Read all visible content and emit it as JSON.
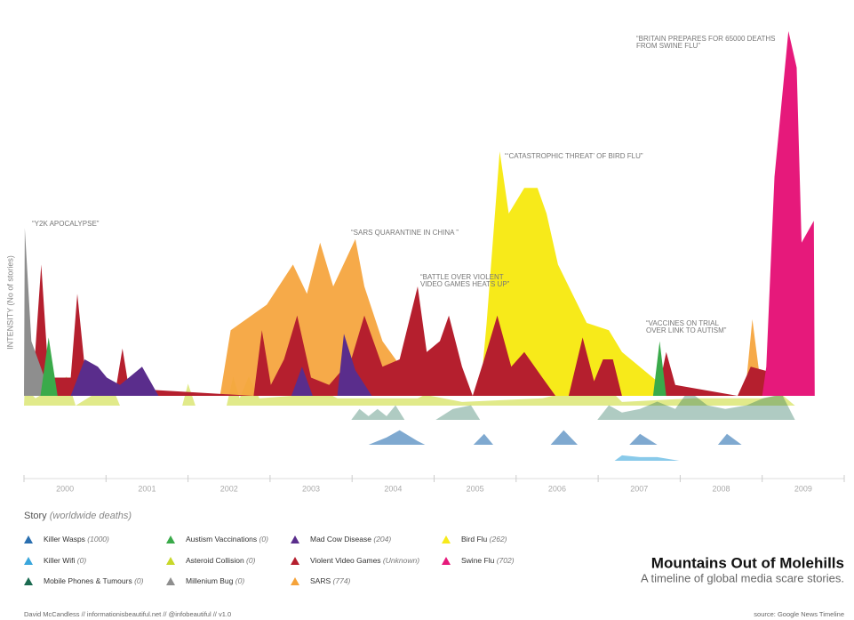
{
  "chart_data": {
    "type": "area",
    "title": "Mountains Out of Molehills",
    "subtitle": "A timeline of global media scare stories.",
    "y_label": "INTENSITY (No of stories)",
    "legend_title": "Story",
    "legend_note": "(worldwide deaths)",
    "credit": "David McCandless // informationisbeautiful.net // @infobeautiful // v1.0",
    "source": "source: Google News Timeline",
    "categories": [
      "2000",
      "2001",
      "2002",
      "2003",
      "2004",
      "2005",
      "2006",
      "2007",
      "2008",
      "2009"
    ],
    "xlim": [
      2000,
      2010
    ],
    "ylim": [
      0,
      100
    ],
    "annotations": [
      [
        "“Y2K APOCALYPSE”"
      ],
      [
        "“SARS QUARANTINE IN CHINA  ”"
      ],
      [
        "“BATTLE OVER VIOLENT",
        "VIDEO GAMES HEATS UP”"
      ],
      [
        "“‘CATASTROPHIC THREAT’ OF BIRD FLU”"
      ],
      [
        "“VACCINES ON TRIAL",
        "OVER LINK TO AUTISM”"
      ],
      [
        "“BRITAIN PREPARES FOR 65000 DEATHS",
        "FROM SWINE FLU”"
      ]
    ],
    "series": [
      {
        "name": "Killer Wasps",
        "deaths": "(1000)",
        "color": "#2a6fb0",
        "x": [
          2004.2,
          2004.42,
          2004.58,
          2004.8,
          2004.89,
          2005.48,
          2005.61,
          2005.72,
          2006.42,
          2006.58,
          2006.75,
          2007.38,
          2007.51,
          2007.72,
          2008.46,
          2008.57,
          2008.75
        ],
        "values": [
          0,
          2,
          4,
          1,
          0,
          0,
          3,
          0,
          0,
          4,
          0,
          0,
          3,
          0,
          0,
          3,
          0
        ]
      },
      {
        "name": "Killer Wifi",
        "deaths": "(0)",
        "color": "#3aa6dc",
        "x": [
          2007.2,
          2007.29,
          2007.51,
          2007.72,
          2007.99
        ],
        "values": [
          0,
          1.5,
          1,
          1,
          0
        ]
      },
      {
        "name": "Mobile Phones & Tumours",
        "deaths": "(0)",
        "color": "#1a6a50",
        "x": [
          2003.99,
          2004.09,
          2004.2,
          2004.31,
          2004.42,
          2004.53,
          2004.64,
          2005.02,
          2005.23,
          2005.45,
          2005.56,
          2006.99,
          2007.13,
          2007.29,
          2007.51,
          2007.72,
          2007.94,
          2008.1,
          2008.33,
          2008.55,
          2008.81,
          2009.02,
          2009.24,
          2009.4
        ],
        "values": [
          0,
          3,
          1,
          3,
          1,
          4,
          0,
          0,
          3,
          4,
          0,
          0,
          4,
          2,
          3,
          5,
          3,
          8,
          4,
          3,
          4,
          6,
          7,
          0
        ]
      },
      {
        "name": "Austism Vaccinations",
        "deaths": "(0)",
        "color": "#3aaa4a",
        "x": [
          2000.2,
          2000.3,
          2000.41,
          2007.67,
          2007.75,
          2007.83
        ],
        "values": [
          0,
          16,
          0,
          0,
          15,
          0
        ]
      },
      {
        "name": "Asteroid Collision",
        "deaths": "(0)",
        "color": "#c8d82a",
        "x": [
          2000.0,
          2000.01,
          2000.14,
          2000.36,
          2000.52,
          2000.63,
          2001.06,
          2001.17,
          2001.93,
          2002.0,
          2002.09,
          2002.47,
          2002.55,
          2002.63,
          2002.74,
          2002.87,
          2003.45,
          2003.56,
          2003.82,
          2004.8,
          2004.89,
          2005.34,
          2006.32,
          2007.07,
          2007.29,
          2008.16,
          2009.02,
          2009.24,
          2009.4
        ],
        "values": [
          0,
          5,
          2,
          5,
          8,
          0,
          6,
          0,
          0,
          6,
          0,
          0,
          8,
          2,
          8,
          2,
          3,
          5,
          2,
          2,
          3,
          1,
          2,
          6,
          1,
          2,
          2,
          3,
          0
        ]
      },
      {
        "name": "Millenium Bug",
        "deaths": "(0)",
        "color": "#8e8e8e",
        "x": [
          2000.0,
          2000.01,
          2000.09,
          2000.25,
          2000.36
        ],
        "values": [
          0,
          46,
          15,
          5,
          0
        ]
      },
      {
        "name": "Mad Cow Disease",
        "deaths": "(204)",
        "color": "#5a2d8c",
        "x": [
          2000.57,
          2000.74,
          2000.9,
          2001.01,
          2001.17,
          2001.44,
          2001.64,
          2003.26,
          2003.39,
          2003.52,
          2003.82,
          2003.9,
          2004.04,
          2004.24
        ],
        "values": [
          0,
          10,
          8,
          5,
          3,
          8,
          0,
          0,
          8,
          0,
          0,
          17,
          7,
          0
        ]
      },
      {
        "name": "Violent Video Games",
        "deaths": "(Unknown)",
        "color": "#b51f2e",
        "x": [
          2000.1,
          2000.21,
          2000.3,
          2000.57,
          2000.65,
          2000.74,
          2001.12,
          2001.2,
          2001.28,
          2002.8,
          2002.9,
          2003.01,
          2003.17,
          2003.33,
          2003.5,
          2003.72,
          2003.99,
          2004.15,
          2004.37,
          2004.58,
          2004.8,
          2004.91,
          2005.07,
          2005.18,
          2005.34,
          2005.47,
          2005.61,
          2005.77,
          2005.94,
          2006.1,
          2006.32,
          2006.48,
          2006.64,
          2006.81,
          2006.95,
          2007.06,
          2007.18,
          2007.29,
          2007.72,
          2007.83,
          2007.94,
          2008.7,
          2008.86,
          2009.02,
          2009.19,
          2009.4
        ],
        "values": [
          0,
          36,
          5,
          5,
          28,
          8,
          2,
          13,
          2,
          0,
          18,
          3,
          10,
          22,
          5,
          3,
          10,
          22,
          8,
          10,
          30,
          12,
          15,
          22,
          8,
          0,
          10,
          22,
          8,
          12,
          5,
          0,
          0,
          16,
          4,
          10,
          10,
          0,
          0,
          12,
          3,
          0,
          8,
          7,
          6,
          0
        ]
      },
      {
        "name": "SARS",
        "deaths": "(774)",
        "color": "#f5a33a",
        "x": [
          2002.39,
          2002.52,
          2002.96,
          2003.28,
          2003.45,
          2003.61,
          2003.77,
          2004.04,
          2004.15,
          2004.37,
          2004.69,
          2004.8,
          2008.79,
          2008.88,
          2009.0
        ],
        "values": [
          0,
          18,
          25,
          36,
          28,
          42,
          30,
          43,
          30,
          15,
          5,
          0,
          0,
          21,
          0
        ]
      },
      {
        "name": "Bird Flu",
        "deaths": "(262)",
        "color": "#f7ea1a",
        "x": [
          2005.56,
          2005.64,
          2005.8,
          2005.91,
          2006.1,
          2006.26,
          2006.37,
          2006.51,
          2006.86,
          2007.13,
          2007.29,
          2007.72,
          2007.78
        ],
        "values": [
          0,
          20,
          67,
          50,
          57,
          57,
          50,
          36,
          20,
          18,
          12,
          4,
          0
        ]
      },
      {
        "name": "Swine Flu",
        "deaths": "(702)",
        "color": "#e6197b",
        "x": [
          2009.0,
          2009.05,
          2009.15,
          2009.32,
          2009.42,
          2009.48,
          2009.63,
          2009.64
        ],
        "values": [
          0,
          8,
          60,
          100,
          90,
          42,
          48,
          0
        ]
      }
    ]
  }
}
